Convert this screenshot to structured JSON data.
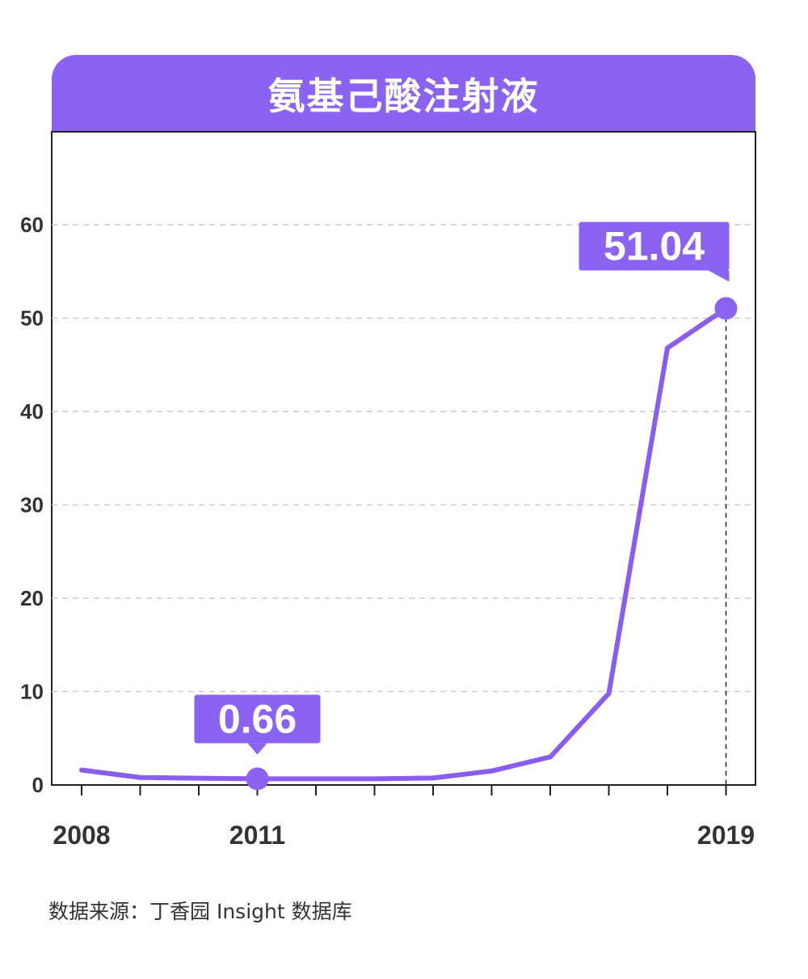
{
  "title": "氨基己酸注射液",
  "source": "数据来源：丁香园 Insight 数据库",
  "colors": {
    "accent": "#8a63f2",
    "line": "#8a5cf0",
    "grid": "#cccccc",
    "axis": "#222222",
    "text": "#333333"
  },
  "chart_data": {
    "type": "line",
    "title": "氨基己酸注射液",
    "xlabel": "",
    "ylabel": "",
    "ylim": [
      0,
      60
    ],
    "yticks": [
      0,
      10,
      20,
      30,
      40,
      50,
      60
    ],
    "x_tick_labels": [
      "2008",
      "2011",
      "2019"
    ],
    "grid": true,
    "x": [
      2008,
      2009,
      2010,
      2011,
      2012,
      2013,
      2014,
      2015,
      2016,
      2017,
      2018,
      2019
    ],
    "series": [
      {
        "values": [
          1.6,
          0.8,
          0.72,
          0.66,
          0.66,
          0.66,
          0.75,
          1.5,
          3.0,
          9.8,
          46.8,
          51.04
        ]
      }
    ],
    "annotations": [
      {
        "x": 2011,
        "y": 0.66,
        "label": "0.66"
      },
      {
        "x": 2019,
        "y": 51.04,
        "label": "51.04"
      }
    ]
  }
}
